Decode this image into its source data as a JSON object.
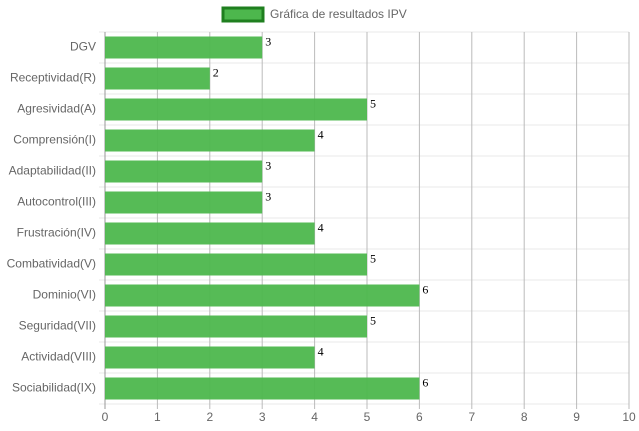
{
  "chart_data": {
    "type": "hbar",
    "categories": [
      "DGV",
      "Receptividad(R)",
      "Agresividad(A)",
      "Comprensión(I)",
      "Adaptabilidad(II)",
      "Autocontrol(III)",
      "Frustración(IV)",
      "Combatividad(V)",
      "Dominio(VI)",
      "Seguridad(VII)",
      "Actividad(VIII)",
      "Sociabilidad(IX)"
    ],
    "series": [
      {
        "name": "Gráfica de resultados IPV",
        "color": "#4db74d",
        "values": [
          3,
          2,
          5,
          4,
          3,
          3,
          4,
          5,
          6,
          5,
          4,
          6
        ]
      }
    ],
    "xlim": [
      0,
      10
    ],
    "xticks": [
      0,
      1,
      2,
      3,
      4,
      5,
      6,
      7,
      8,
      9,
      10
    ],
    "grid": true,
    "legend": "top"
  }
}
